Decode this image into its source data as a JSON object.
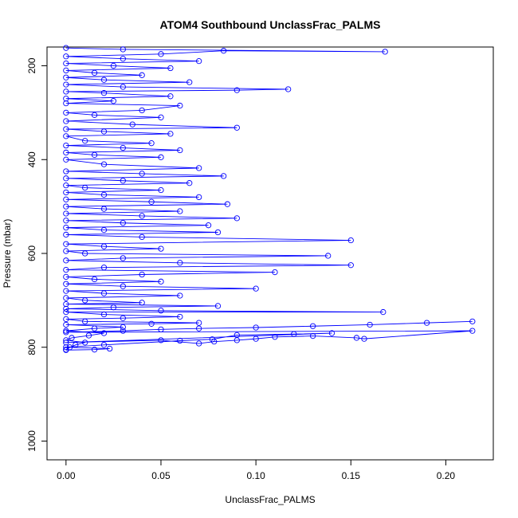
{
  "chart_data": {
    "type": "line",
    "title": "ATOM4 Southbound UnclassFrac_PALMS",
    "xlabel": "UnclassFrac_PALMS",
    "ylabel": "Pressure (mbar)",
    "xlim": [
      -0.01,
      0.225
    ],
    "ylim": [
      1040,
      160
    ],
    "y_axis_inverted": true,
    "x_ticks": [
      {
        "value": 0.0,
        "label": "0.00"
      },
      {
        "value": 0.05,
        "label": "0.05"
      },
      {
        "value": 0.1,
        "label": "0.10"
      },
      {
        "value": 0.15,
        "label": "0.15"
      },
      {
        "value": 0.2,
        "label": "0.20"
      }
    ],
    "y_ticks": [
      {
        "value": 200,
        "label": "200"
      },
      {
        "value": 400,
        "label": "400"
      },
      {
        "value": 600,
        "label": "600"
      },
      {
        "value": 800,
        "label": "800"
      },
      {
        "value": 1000,
        "label": "1000"
      }
    ],
    "grid": false,
    "series_color": "#0000ff",
    "marker": "open-circle",
    "series": [
      {
        "points": [
          [
            0.0,
            805
          ],
          [
            0.002,
            800
          ],
          [
            0.005,
            795
          ],
          [
            0.01,
            790
          ],
          [
            0.0,
            785
          ],
          [
            0.003,
            780
          ],
          [
            0.012,
            775
          ],
          [
            0.02,
            770
          ],
          [
            0.0,
            765
          ],
          [
            0.015,
            760
          ],
          [
            0.03,
            757
          ],
          [
            0.0,
            752
          ],
          [
            0.045,
            750
          ],
          [
            0.07,
            748
          ],
          [
            0.01,
            745
          ],
          [
            0.0,
            740
          ],
          [
            0.03,
            738
          ],
          [
            0.06,
            735
          ],
          [
            0.02,
            730
          ],
          [
            0.0,
            725
          ],
          [
            0.167,
            725
          ],
          [
            0.05,
            722
          ],
          [
            0.0,
            718
          ],
          [
            0.025,
            715
          ],
          [
            0.08,
            712
          ],
          [
            0.0,
            708
          ],
          [
            0.04,
            705
          ],
          [
            0.01,
            700
          ],
          [
            0.0,
            695
          ],
          [
            0.06,
            690
          ],
          [
            0.02,
            685
          ],
          [
            0.0,
            680
          ],
          [
            0.1,
            675
          ],
          [
            0.03,
            670
          ],
          [
            0.0,
            665
          ],
          [
            0.05,
            660
          ],
          [
            0.015,
            655
          ],
          [
            0.0,
            650
          ],
          [
            0.04,
            645
          ],
          [
            0.11,
            640
          ],
          [
            0.0,
            635
          ],
          [
            0.02,
            630
          ],
          [
            0.15,
            625
          ],
          [
            0.06,
            620
          ],
          [
            0.0,
            615
          ],
          [
            0.03,
            610
          ],
          [
            0.138,
            605
          ],
          [
            0.01,
            600
          ],
          [
            0.0,
            595
          ],
          [
            0.05,
            590
          ],
          [
            0.02,
            585
          ],
          [
            0.0,
            580
          ],
          [
            0.15,
            572
          ],
          [
            0.04,
            565
          ],
          [
            0.0,
            560
          ],
          [
            0.08,
            555
          ],
          [
            0.02,
            550
          ],
          [
            0.0,
            545
          ],
          [
            0.075,
            540
          ],
          [
            0.03,
            535
          ],
          [
            0.0,
            530
          ],
          [
            0.09,
            525
          ],
          [
            0.04,
            520
          ],
          [
            0.0,
            515
          ],
          [
            0.06,
            510
          ],
          [
            0.02,
            505
          ],
          [
            0.0,
            500
          ],
          [
            0.085,
            495
          ],
          [
            0.045,
            490
          ],
          [
            0.0,
            485
          ],
          [
            0.07,
            480
          ],
          [
            0.02,
            475
          ],
          [
            0.0,
            470
          ],
          [
            0.05,
            465
          ],
          [
            0.01,
            460
          ],
          [
            0.0,
            455
          ],
          [
            0.065,
            450
          ],
          [
            0.03,
            445
          ],
          [
            0.0,
            440
          ],
          [
            0.083,
            435
          ],
          [
            0.04,
            430
          ],
          [
            0.0,
            425
          ],
          [
            0.07,
            418
          ],
          [
            0.02,
            410
          ],
          [
            0.0,
            400
          ],
          [
            0.05,
            395
          ],
          [
            0.015,
            390
          ],
          [
            0.0,
            385
          ],
          [
            0.06,
            380
          ],
          [
            0.03,
            375
          ],
          [
            0.0,
            370
          ],
          [
            0.045,
            365
          ],
          [
            0.01,
            360
          ],
          [
            0.0,
            350
          ],
          [
            0.055,
            345
          ],
          [
            0.02,
            340
          ],
          [
            0.0,
            335
          ],
          [
            0.09,
            332
          ],
          [
            0.035,
            325
          ],
          [
            0.0,
            318
          ],
          [
            0.05,
            310
          ],
          [
            0.015,
            305
          ],
          [
            0.0,
            300
          ],
          [
            0.04,
            295
          ],
          [
            0.06,
            285
          ],
          [
            0.0,
            280
          ],
          [
            0.025,
            275
          ],
          [
            0.0,
            270
          ],
          [
            0.055,
            265
          ],
          [
            0.02,
            258
          ],
          [
            0.0,
            255
          ],
          [
            0.09,
            252
          ],
          [
            0.117,
            250
          ],
          [
            0.03,
            245
          ],
          [
            0.0,
            240
          ],
          [
            0.065,
            235
          ],
          [
            0.02,
            230
          ],
          [
            0.0,
            225
          ],
          [
            0.04,
            220
          ],
          [
            0.015,
            215
          ],
          [
            0.0,
            210
          ],
          [
            0.055,
            205
          ],
          [
            0.025,
            200
          ],
          [
            0.0,
            195
          ],
          [
            0.07,
            190
          ],
          [
            0.03,
            185
          ],
          [
            0.0,
            180
          ],
          [
            0.05,
            175
          ],
          [
            0.083,
            168
          ],
          [
            0.168,
            170
          ],
          [
            0.03,
            165
          ],
          [
            0.0,
            162
          ]
        ]
      },
      {
        "points": [
          [
            0.214,
            745
          ],
          [
            0.19,
            748
          ],
          [
            0.16,
            752
          ],
          [
            0.13,
            755
          ],
          [
            0.1,
            758
          ],
          [
            0.07,
            760
          ],
          [
            0.05,
            762
          ],
          [
            0.03,
            765
          ],
          [
            0.0,
            768
          ],
          [
            0.214,
            765
          ],
          [
            0.157,
            782
          ],
          [
            0.153,
            780
          ],
          [
            0.13,
            776
          ],
          [
            0.11,
            778
          ],
          [
            0.1,
            782
          ],
          [
            0.09,
            785
          ],
          [
            0.078,
            788
          ],
          [
            0.07,
            792
          ],
          [
            0.05,
            785
          ],
          [
            0.0,
            790
          ],
          [
            0.14,
            770
          ],
          [
            0.12,
            772
          ],
          [
            0.09,
            774
          ],
          [
            0.077,
            783
          ],
          [
            0.06,
            786
          ],
          [
            0.02,
            795
          ],
          [
            0.0,
            800
          ],
          [
            0.023,
            803
          ],
          [
            0.015,
            805
          ],
          [
            0.0,
            806
          ]
        ]
      }
    ]
  }
}
